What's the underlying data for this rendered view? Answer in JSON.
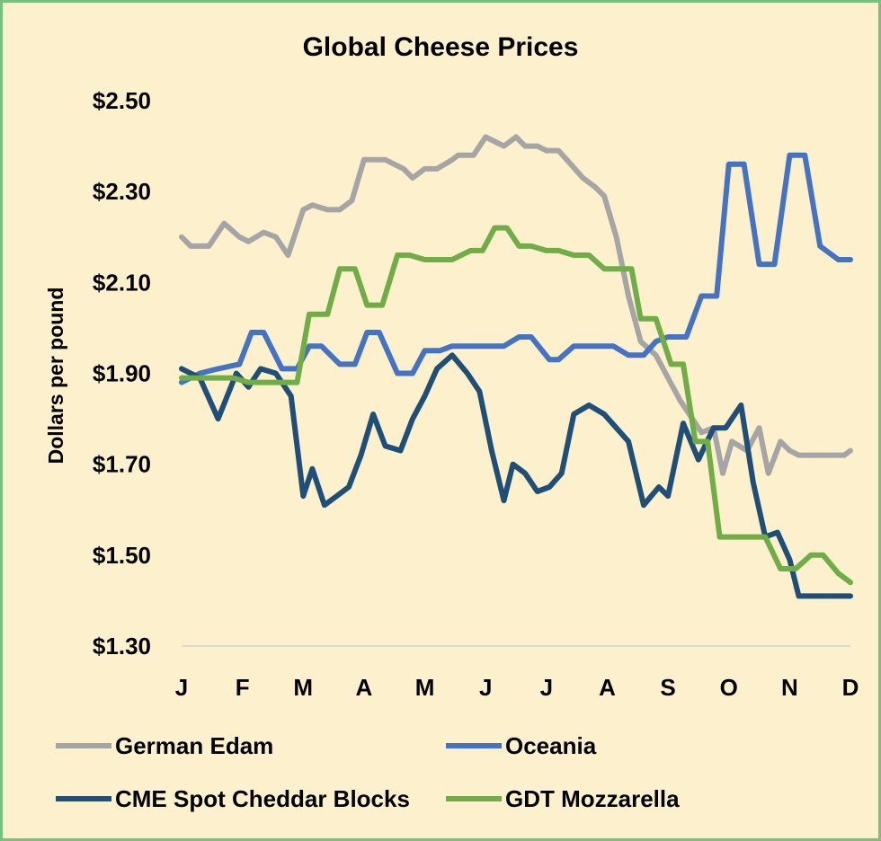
{
  "chart_data": {
    "type": "line",
    "title": "Global Cheese Prices",
    "xlabel": "",
    "ylabel": "Dollars per pound",
    "ylim": [
      1.3,
      2.5
    ],
    "y_ticks": [
      2.5,
      2.3,
      2.1,
      1.9,
      1.7,
      1.5,
      1.3
    ],
    "y_tick_labels": [
      "$2.50",
      "$2.30",
      "$2.10",
      "$1.90",
      "$1.70",
      "$1.50",
      "$1.30"
    ],
    "x_tick_labels": [
      "J",
      "F",
      "M",
      "A",
      "M",
      "J",
      "J",
      "A",
      "S",
      "O",
      "N",
      "D"
    ],
    "x_range": [
      0,
      11
    ],
    "grid": "horizontal baseline only",
    "legend_position": "bottom",
    "series": [
      {
        "name": "German Edam",
        "color": "#a5a5a5",
        "x": [
          0,
          0.15,
          0.45,
          0.7,
          0.95,
          1.1,
          1.35,
          1.55,
          1.75,
          2.0,
          2.15,
          2.4,
          2.6,
          2.8,
          3.0,
          3.2,
          3.35,
          3.65,
          3.8,
          4.0,
          4.2,
          4.45,
          4.55,
          4.8,
          5.0,
          5.15,
          5.3,
          5.5,
          5.65,
          5.85,
          6.0,
          6.2,
          6.4,
          6.6,
          6.8,
          6.95,
          7.15,
          7.35,
          7.55,
          7.8,
          8.0,
          8.2,
          8.35,
          8.55,
          8.75,
          8.9,
          9.05,
          9.3,
          9.5,
          9.65,
          9.85,
          10.0,
          10.15,
          10.35,
          10.55,
          10.7,
          10.9,
          11.0
        ],
        "values": [
          2.2,
          2.18,
          2.18,
          2.23,
          2.2,
          2.19,
          2.21,
          2.2,
          2.16,
          2.26,
          2.27,
          2.26,
          2.26,
          2.28,
          2.37,
          2.37,
          2.37,
          2.35,
          2.33,
          2.35,
          2.35,
          2.37,
          2.38,
          2.38,
          2.42,
          2.41,
          2.4,
          2.42,
          2.4,
          2.4,
          2.39,
          2.39,
          2.36,
          2.33,
          2.31,
          2.29,
          2.2,
          2.07,
          1.97,
          1.94,
          1.89,
          1.84,
          1.81,
          1.77,
          1.78,
          1.68,
          1.75,
          1.73,
          1.78,
          1.68,
          1.75,
          1.73,
          1.72,
          1.72,
          1.72,
          1.72,
          1.72,
          1.73
        ]
      },
      {
        "name": "Oceania",
        "color": "#4472c4",
        "x": [
          0,
          0.3,
          0.6,
          0.95,
          1.15,
          1.35,
          1.65,
          1.9,
          2.1,
          2.3,
          2.6,
          2.85,
          3.05,
          3.25,
          3.55,
          3.8,
          4.0,
          4.25,
          4.45,
          4.75,
          5.0,
          5.3,
          5.55,
          5.75,
          6.05,
          6.2,
          6.45,
          6.8,
          7.1,
          7.35,
          7.6,
          7.8,
          8.0,
          8.3,
          8.55,
          8.8,
          9.0,
          9.25,
          9.5,
          9.75,
          10.0,
          10.25,
          10.5,
          10.8,
          11.0
        ],
        "values": [
          1.88,
          1.9,
          1.91,
          1.92,
          1.99,
          1.99,
          1.91,
          1.91,
          1.96,
          1.96,
          1.92,
          1.92,
          1.99,
          1.99,
          1.9,
          1.9,
          1.95,
          1.95,
          1.96,
          1.96,
          1.96,
          1.96,
          1.98,
          1.98,
          1.93,
          1.93,
          1.96,
          1.96,
          1.96,
          1.94,
          1.94,
          1.97,
          1.98,
          1.98,
          2.07,
          2.07,
          2.36,
          2.36,
          2.14,
          2.14,
          2.38,
          2.38,
          2.18,
          2.15,
          2.15
        ]
      },
      {
        "name": "CME Spot Cheddar Blocks",
        "color": "#1f4e79",
        "x": [
          0,
          0.3,
          0.6,
          0.9,
          1.1,
          1.3,
          1.55,
          1.8,
          2.0,
          2.15,
          2.35,
          2.55,
          2.75,
          2.95,
          3.15,
          3.35,
          3.6,
          3.8,
          4.0,
          4.2,
          4.45,
          4.7,
          4.9,
          5.1,
          5.3,
          5.45,
          5.65,
          5.85,
          6.05,
          6.25,
          6.45,
          6.7,
          6.95,
          7.15,
          7.35,
          7.6,
          7.85,
          8.0,
          8.25,
          8.5,
          8.75,
          8.95,
          9.2,
          9.4,
          9.6,
          9.8,
          10.0,
          10.15,
          10.35,
          10.55,
          10.8,
          11.0
        ],
        "values": [
          1.91,
          1.89,
          1.8,
          1.9,
          1.87,
          1.91,
          1.9,
          1.85,
          1.63,
          1.69,
          1.61,
          1.63,
          1.65,
          1.72,
          1.81,
          1.74,
          1.73,
          1.8,
          1.85,
          1.91,
          1.94,
          1.9,
          1.86,
          1.73,
          1.62,
          1.7,
          1.68,
          1.64,
          1.65,
          1.68,
          1.81,
          1.83,
          1.81,
          1.78,
          1.75,
          1.61,
          1.65,
          1.63,
          1.79,
          1.71,
          1.78,
          1.78,
          1.83,
          1.66,
          1.54,
          1.55,
          1.49,
          1.41,
          1.41,
          1.41,
          1.41,
          1.41
        ]
      },
      {
        "name": "GDT Mozzarella",
        "color": "#70ad47",
        "x": [
          0,
          0.25,
          0.55,
          0.85,
          1.1,
          1.35,
          1.65,
          1.9,
          2.1,
          2.4,
          2.6,
          2.85,
          3.05,
          3.3,
          3.55,
          3.75,
          4.0,
          4.25,
          4.45,
          4.75,
          4.95,
          5.15,
          5.35,
          5.55,
          5.75,
          6.0,
          6.2,
          6.45,
          6.7,
          6.95,
          7.15,
          7.4,
          7.55,
          7.8,
          8.05,
          8.25,
          8.45,
          8.65,
          8.85,
          9.1,
          9.35,
          9.6,
          9.85,
          10.1,
          10.35,
          10.55,
          10.8,
          11.0
        ],
        "values": [
          1.89,
          1.89,
          1.89,
          1.89,
          1.88,
          1.88,
          1.88,
          1.88,
          2.03,
          2.03,
          2.13,
          2.13,
          2.05,
          2.05,
          2.16,
          2.16,
          2.15,
          2.15,
          2.15,
          2.17,
          2.17,
          2.22,
          2.22,
          2.18,
          2.18,
          2.17,
          2.17,
          2.16,
          2.16,
          2.13,
          2.13,
          2.13,
          2.02,
          2.02,
          1.92,
          1.92,
          1.75,
          1.75,
          1.54,
          1.54,
          1.54,
          1.54,
          1.47,
          1.47,
          1.5,
          1.5,
          1.46,
          1.44
        ]
      }
    ],
    "legend": [
      "German Edam",
      "Oceania",
      "CME Spot Cheddar Blocks",
      "GDT Mozzarella"
    ]
  }
}
